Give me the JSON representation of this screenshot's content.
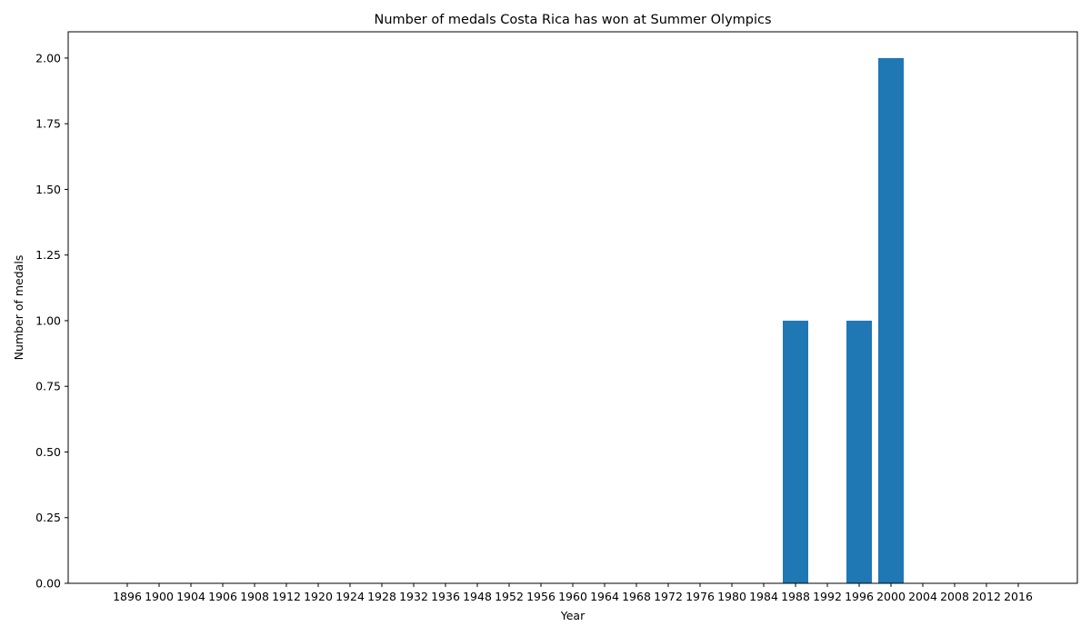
{
  "chart_data": {
    "type": "bar",
    "title": "Number of medals Costa Rica has won at Summer Olympics",
    "xlabel": "Year",
    "ylabel": "Number of medals",
    "categories": [
      "1896",
      "1900",
      "1904",
      "1906",
      "1908",
      "1912",
      "1920",
      "1924",
      "1928",
      "1932",
      "1936",
      "1948",
      "1952",
      "1956",
      "1960",
      "1964",
      "1968",
      "1972",
      "1976",
      "1980",
      "1984",
      "1988",
      "1992",
      "1996",
      "2000",
      "2004",
      "2008",
      "2012",
      "2016"
    ],
    "values": [
      0,
      0,
      0,
      0,
      0,
      0,
      0,
      0,
      0,
      0,
      0,
      0,
      0,
      0,
      0,
      0,
      0,
      0,
      0,
      0,
      0,
      1,
      0,
      1,
      2,
      0,
      0,
      0,
      0
    ],
    "ylim": [
      0,
      2.1
    ],
    "yticks": [
      "0.00",
      "0.25",
      "0.50",
      "0.75",
      "1.00",
      "1.25",
      "1.50",
      "1.75",
      "2.00"
    ],
    "bar_color": "#1f77b4",
    "grid": false,
    "legend": false
  }
}
